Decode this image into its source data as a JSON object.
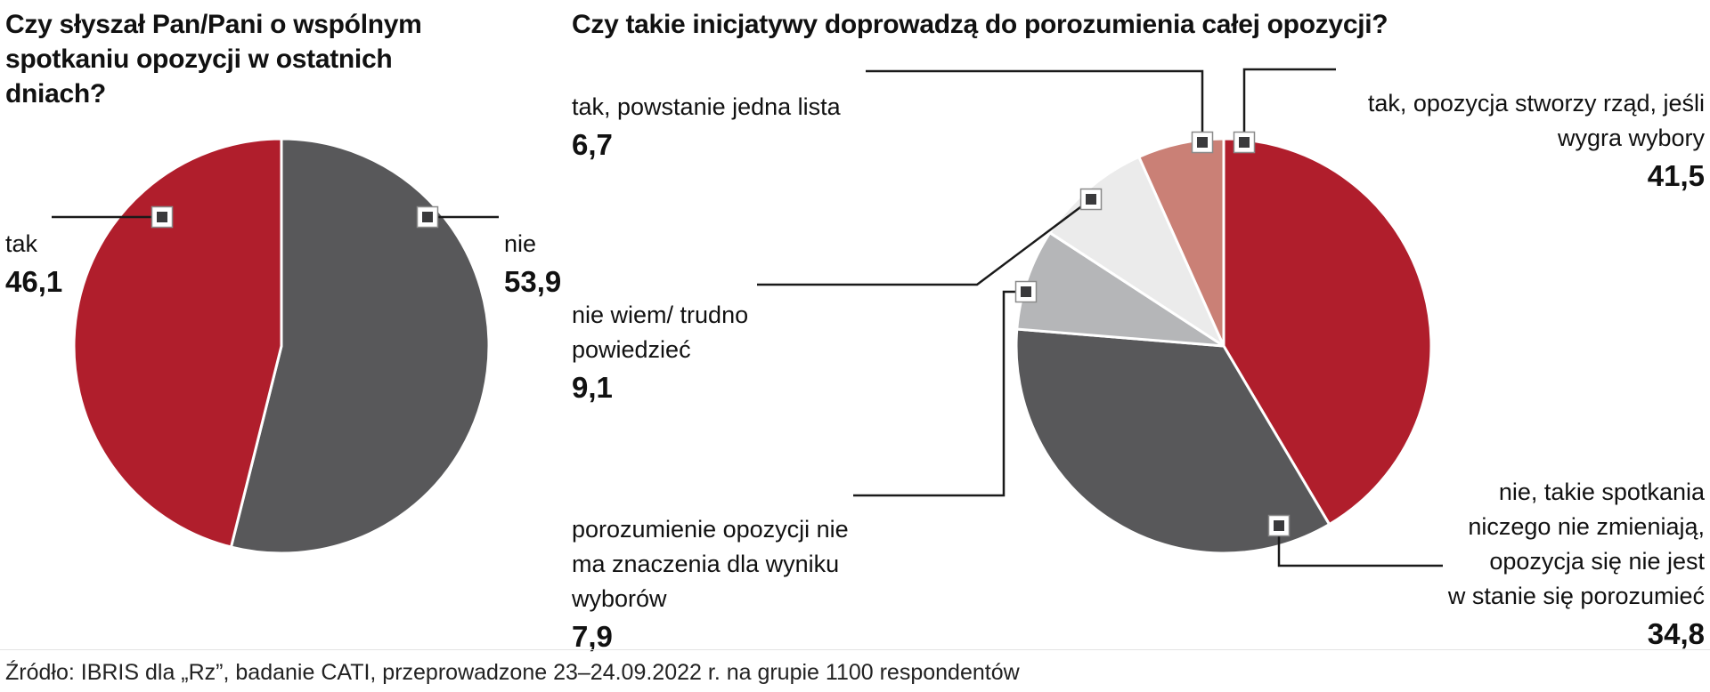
{
  "source": "Źródło: IBRIS dla „Rz”, badanie CATI, przeprowadzone 23–24.09.2022 r. na grupie 1100 respondentów",
  "chart_data": [
    {
      "type": "pie",
      "title": "Czy słyszał Pan/Pani o wspólnym\nspotkaniu opozycji w ostatnich\ndniach?",
      "values_are_percent": true,
      "start_angle_deg": 0,
      "direction": "clockwise",
      "slices": [
        {
          "label": "nie",
          "value": 53.9,
          "display": "53,9",
          "color": "#58585a"
        },
        {
          "label": "tak",
          "value": 46.1,
          "display": "46,1",
          "color": "#b01e2c"
        }
      ]
    },
    {
      "type": "pie",
      "title": "Czy takie inicjatywy doprowadzą do porozumienia całej opozycji?",
      "values_are_percent": true,
      "start_angle_deg": 0,
      "direction": "clockwise",
      "slices": [
        {
          "label": "tak, opozycja stworzy rząd, jeśli\nwygra wybory",
          "value": 41.5,
          "display": "41,5",
          "color": "#b01e2c"
        },
        {
          "label": "nie, takie spotkania\nniczego nie zmieniają,\nopozycja się nie jest\nw stanie się porozumieć",
          "value": 34.8,
          "display": "34,8",
          "color": "#58585a"
        },
        {
          "label": "porozumienie opozycji nie\nma znaczenia dla wyniku\nwyborów",
          "value": 7.9,
          "display": "7,9",
          "color": "#b5b6b8"
        },
        {
          "label": "nie wiem/ trudno\npowiedzieć",
          "value": 9.1,
          "display": "9,1",
          "color": "#ebebeb"
        },
        {
          "label": "tak, powstanie jedna lista",
          "value": 6.7,
          "display": "6,7",
          "color": "#ca8076"
        }
      ]
    }
  ]
}
